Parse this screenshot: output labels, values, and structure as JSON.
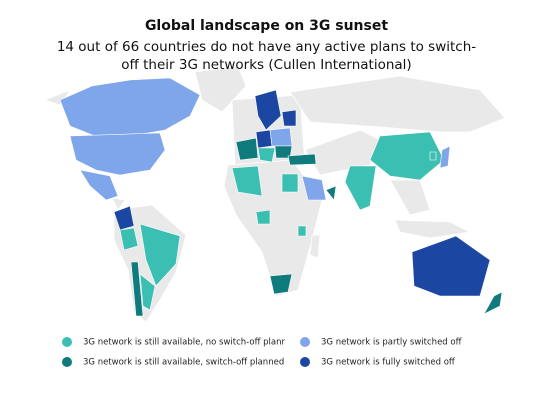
{
  "header": {
    "title": "Global landscape on 3G sunset",
    "subtitle": "14 out of 66 countries do not have any active plans to switch-off their 3G networks (Cullen International)"
  },
  "legend": {
    "items": [
      {
        "label": "3G network is still available, no switch-off planr",
        "color": "#3cbfb3"
      },
      {
        "label": "3G network is still available, switch-off planned",
        "color": "#0f7b7c"
      },
      {
        "label": "3G network is partly switched off",
        "color": "#7fa5ea"
      },
      {
        "label": "3G network is fully switched off",
        "color": "#1b47a3"
      }
    ]
  }
}
